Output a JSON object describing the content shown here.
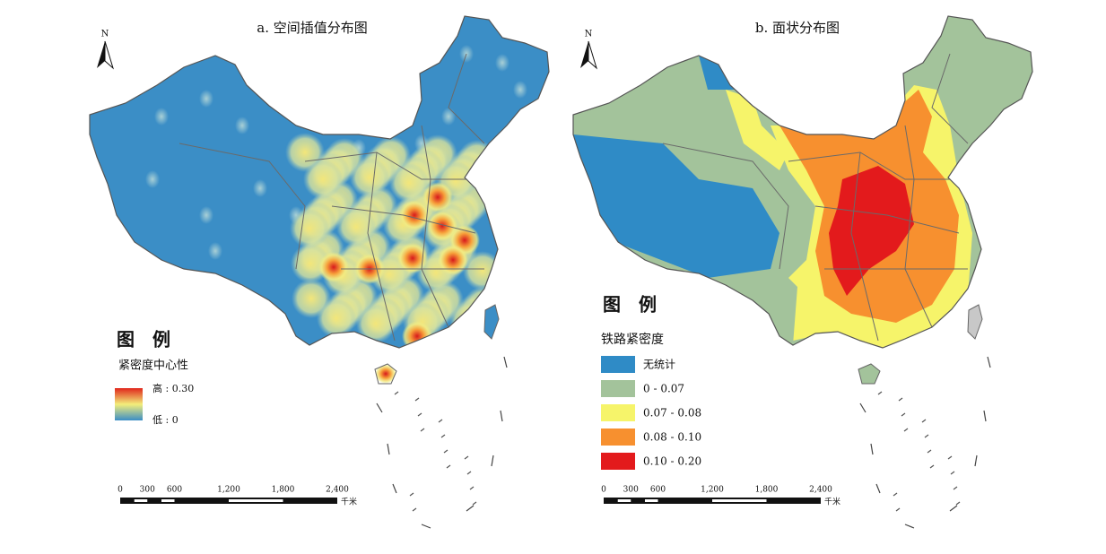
{
  "panels": [
    {
      "title": "a. 空间插值分布图",
      "north": "N",
      "legend_title": "图　例",
      "legend_subtitle": "紧密度中心性",
      "legend_high": "高 : 0.30",
      "legend_low": "低 : 0",
      "scale_labels": [
        "0",
        "300",
        "600",
        "1,200",
        "1,800",
        "2,400"
      ],
      "scale_unit": "千米"
    },
    {
      "title": "b. 面状分布图",
      "north": "N",
      "legend_title": "图　例",
      "legend_subtitle": "铁路紧密度",
      "classes": [
        {
          "label": "无统计",
          "color": "#2f8bc6"
        },
        {
          "label": "0 - 0.07",
          "color": "#a3c39b"
        },
        {
          "label": "0.07 - 0.08",
          "color": "#f6f46a"
        },
        {
          "label": "0.08 - 0.10",
          "color": "#f7902f"
        },
        {
          "label": "0.10 - 0.20",
          "color": "#e31a1c"
        }
      ],
      "scale_labels": [
        "0",
        "300",
        "600",
        "1,200",
        "1,800",
        "2,400"
      ],
      "scale_unit": "千米"
    }
  ]
}
